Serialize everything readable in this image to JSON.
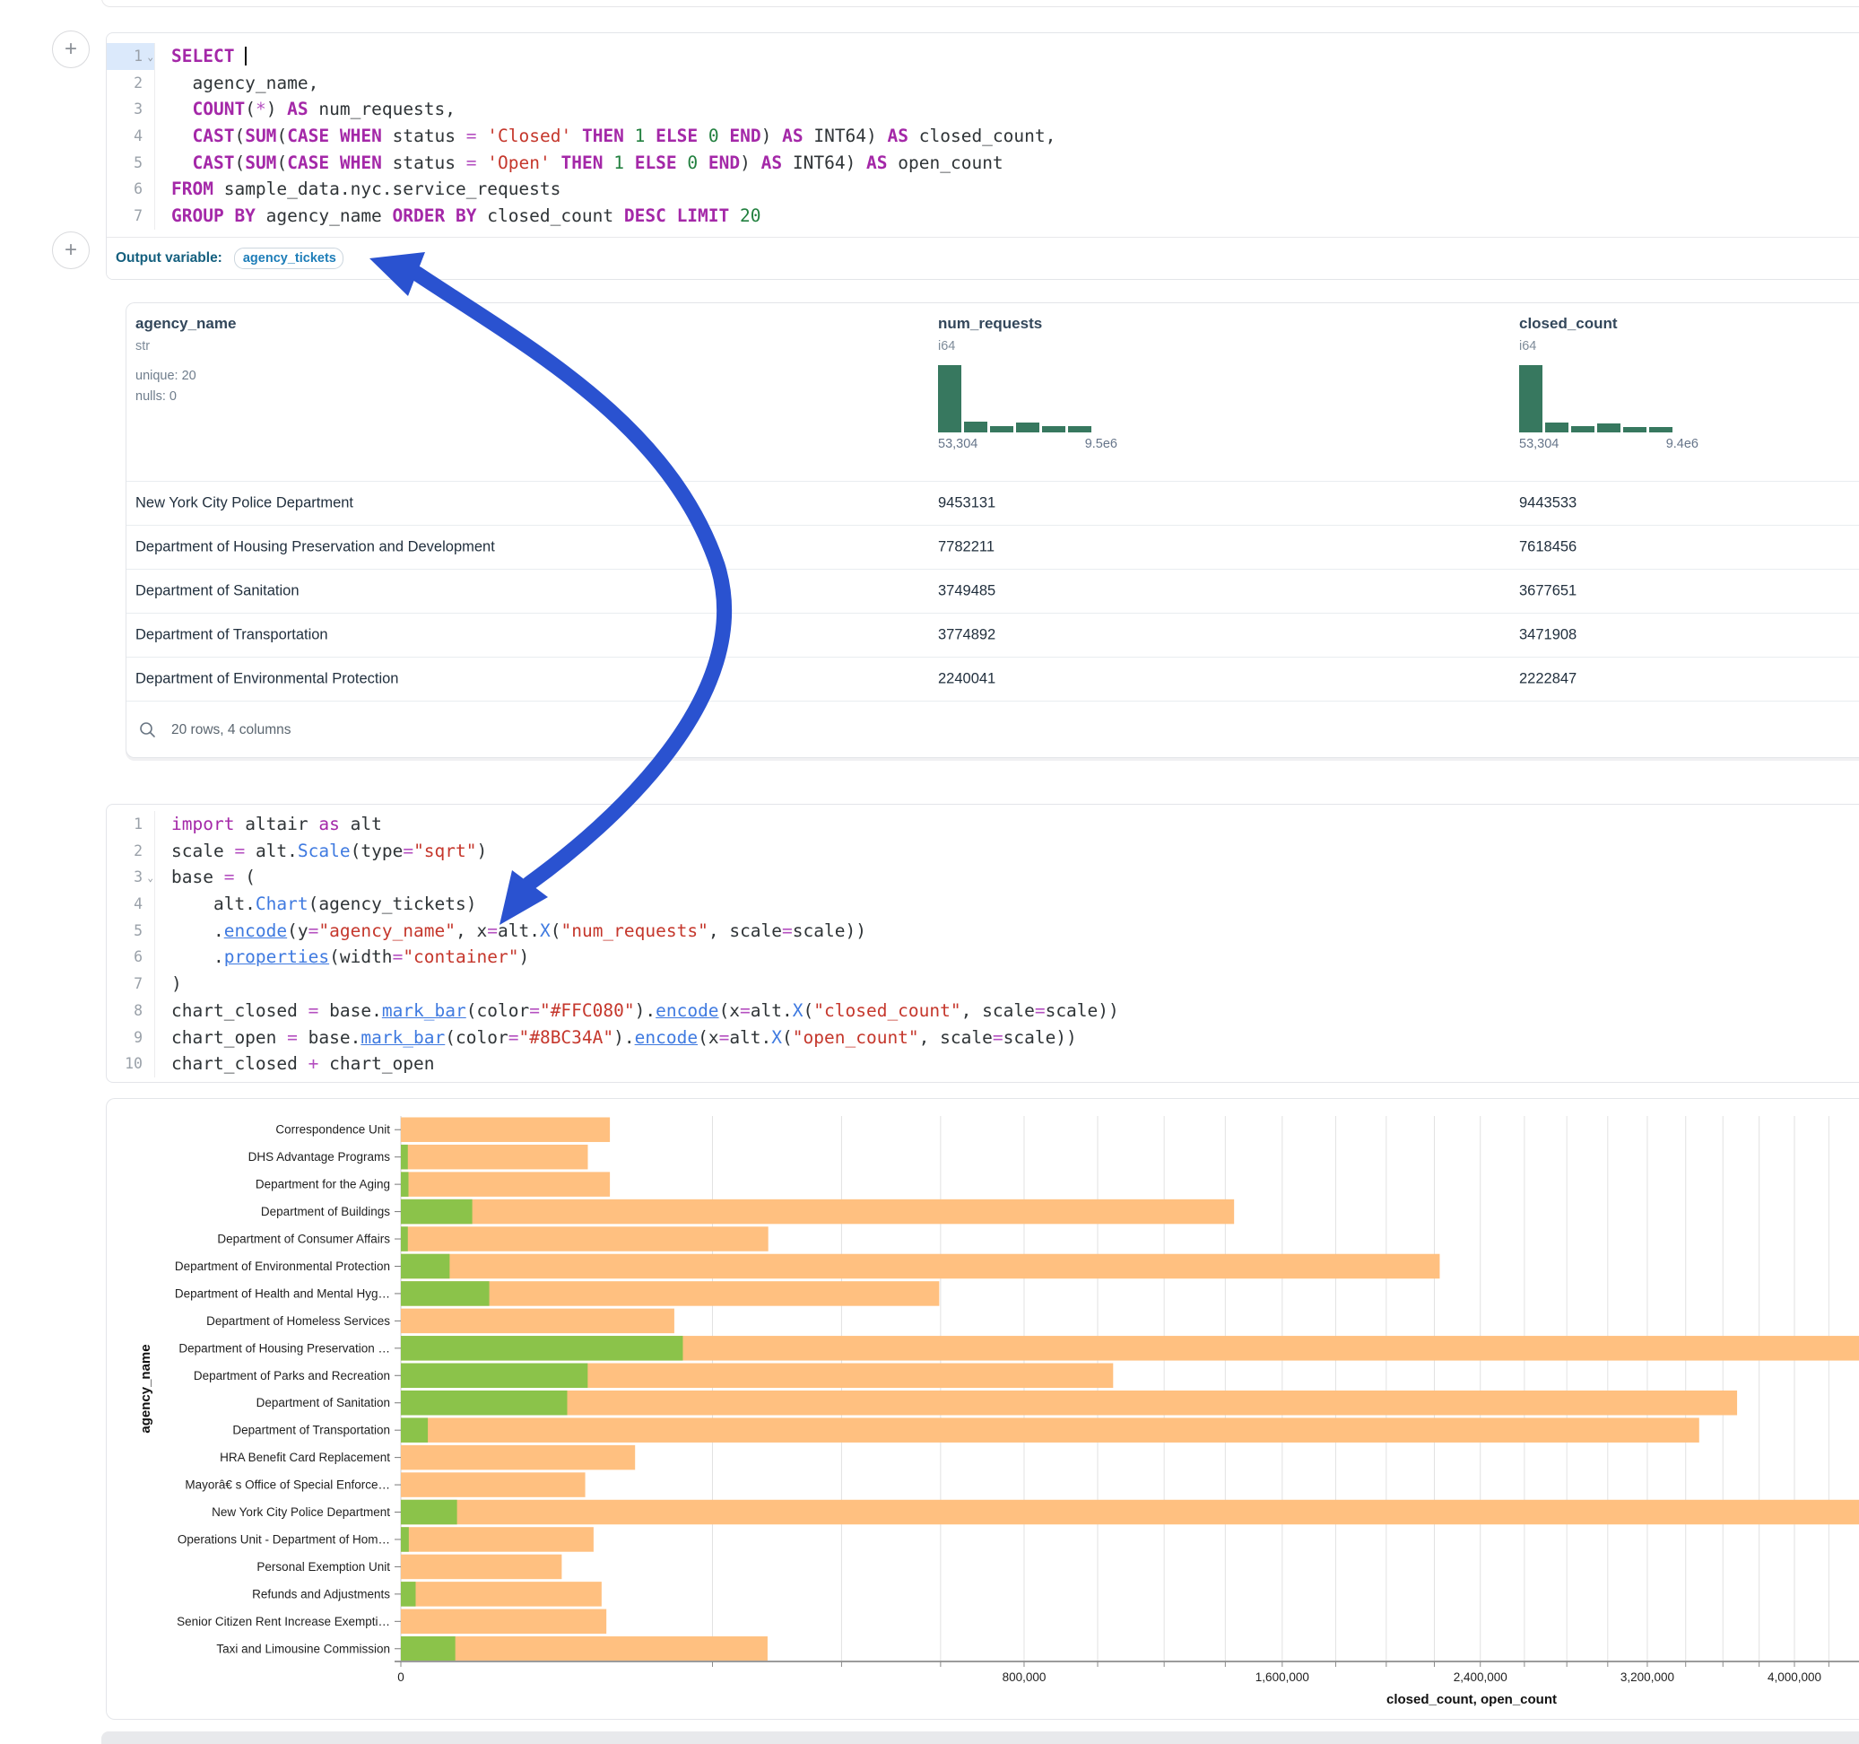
{
  "colors": {
    "arrow": "#2a52d0",
    "bar_closed": "#FFC080",
    "bar_open": "#8BC34A",
    "histogram": "#37785f",
    "keyword": "#a428a8",
    "string": "#c5372c",
    "number": "#22803f",
    "function": "#3f7ae0"
  },
  "add_buttons": {
    "first": "+",
    "second": "+"
  },
  "sql_cell": {
    "lines": [
      {
        "n": "1",
        "chevron": true,
        "active": true,
        "tokens": [
          [
            "k",
            "SELECT"
          ],
          [
            "d",
            " "
          ],
          [
            "cur",
            ""
          ]
        ]
      },
      {
        "n": "2",
        "tokens": [
          [
            "d",
            "  agency_name,"
          ]
        ]
      },
      {
        "n": "3",
        "tokens": [
          [
            "d",
            "  "
          ],
          [
            "k",
            "COUNT"
          ],
          [
            "d",
            "("
          ],
          [
            "o",
            "*"
          ],
          [
            "d",
            ") "
          ],
          [
            "k",
            "AS"
          ],
          [
            "d",
            " num_requests,"
          ]
        ]
      },
      {
        "n": "4",
        "tokens": [
          [
            "d",
            "  "
          ],
          [
            "k",
            "CAST"
          ],
          [
            "d",
            "("
          ],
          [
            "k",
            "SUM"
          ],
          [
            "d",
            "("
          ],
          [
            "k",
            "CASE WHEN"
          ],
          [
            "d",
            " status "
          ],
          [
            "o",
            "="
          ],
          [
            "d",
            " "
          ],
          [
            "s",
            "'Closed'"
          ],
          [
            "d",
            " "
          ],
          [
            "k",
            "THEN"
          ],
          [
            "d",
            " "
          ],
          [
            "n",
            "1"
          ],
          [
            "d",
            " "
          ],
          [
            "k",
            "ELSE"
          ],
          [
            "d",
            " "
          ],
          [
            "n",
            "0"
          ],
          [
            "d",
            " "
          ],
          [
            "k",
            "END"
          ],
          [
            "d",
            ") "
          ],
          [
            "k",
            "AS"
          ],
          [
            "d",
            " INT64) "
          ],
          [
            "k",
            "AS"
          ],
          [
            "d",
            " closed_count,"
          ]
        ]
      },
      {
        "n": "5",
        "tokens": [
          [
            "d",
            "  "
          ],
          [
            "k",
            "CAST"
          ],
          [
            "d",
            "("
          ],
          [
            "k",
            "SUM"
          ],
          [
            "d",
            "("
          ],
          [
            "k",
            "CASE WHEN"
          ],
          [
            "d",
            " status "
          ],
          [
            "o",
            "="
          ],
          [
            "d",
            " "
          ],
          [
            "s",
            "'Open'"
          ],
          [
            "d",
            " "
          ],
          [
            "k",
            "THEN"
          ],
          [
            "d",
            " "
          ],
          [
            "n",
            "1"
          ],
          [
            "d",
            " "
          ],
          [
            "k",
            "ELSE"
          ],
          [
            "d",
            " "
          ],
          [
            "n",
            "0"
          ],
          [
            "d",
            " "
          ],
          [
            "k",
            "END"
          ],
          [
            "d",
            ") "
          ],
          [
            "k",
            "AS"
          ],
          [
            "d",
            " INT64) "
          ],
          [
            "k",
            "AS"
          ],
          [
            "d",
            " open_count"
          ]
        ]
      },
      {
        "n": "6",
        "tokens": [
          [
            "k",
            "FROM"
          ],
          [
            "d",
            " sample_data.nyc.service_requests"
          ]
        ]
      },
      {
        "n": "7",
        "tokens": [
          [
            "k",
            "GROUP BY"
          ],
          [
            "d",
            " agency_name "
          ],
          [
            "k",
            "ORDER BY"
          ],
          [
            "d",
            " closed_count "
          ],
          [
            "k",
            "DESC"
          ],
          [
            "d",
            " "
          ],
          [
            "k",
            "LIMIT"
          ],
          [
            "d",
            " "
          ],
          [
            "n",
            "20"
          ]
        ]
      }
    ]
  },
  "output": {
    "label": "Output variable:",
    "variable": "agency_tickets"
  },
  "table": {
    "columns": [
      {
        "name": "agency_name",
        "type": "str",
        "meta": [
          "unique: 20",
          "nulls: 0"
        ]
      },
      {
        "name": "num_requests",
        "type": "i64",
        "hist": [
          100,
          16,
          9,
          15,
          9,
          9
        ],
        "min_label": "53,304",
        "max_label": "9.5e6"
      },
      {
        "name": "closed_count",
        "type": "i64",
        "hist": [
          100,
          15,
          9,
          14,
          8,
          8
        ],
        "min_label": "53,304",
        "max_label": "9.4e6"
      }
    ],
    "rows": [
      {
        "agency": "New York City Police Department",
        "num": "9453131",
        "closed": "9443533"
      },
      {
        "agency": "Department of Housing Preservation and Development",
        "num": "7782211",
        "closed": "7618456"
      },
      {
        "agency": "Department of Sanitation",
        "num": "3749485",
        "closed": "3677651"
      },
      {
        "agency": "Department of Transportation",
        "num": "3774892",
        "closed": "3471908"
      },
      {
        "agency": "Department of Environmental Protection",
        "num": "2240041",
        "closed": "2222847"
      }
    ],
    "footer": "20 rows, 4 columns"
  },
  "python_cell": {
    "lines": [
      {
        "n": "1",
        "tokens": [
          [
            "kw",
            "import"
          ],
          [
            "d",
            " altair "
          ],
          [
            "kw",
            "as"
          ],
          [
            "d",
            " alt"
          ]
        ]
      },
      {
        "n": "2",
        "tokens": [
          [
            "d",
            "scale "
          ],
          [
            "o",
            "="
          ],
          [
            "d",
            " alt."
          ],
          [
            "f",
            "Scale"
          ],
          [
            "d",
            "(type"
          ],
          [
            "o",
            "="
          ],
          [
            "s",
            "\"sqrt\""
          ],
          [
            "d",
            ")"
          ]
        ]
      },
      {
        "n": "3",
        "chevron": true,
        "tokens": [
          [
            "d",
            "base "
          ],
          [
            "o",
            "="
          ],
          [
            "d",
            " ("
          ]
        ]
      },
      {
        "n": "4",
        "tokens": [
          [
            "d",
            "    alt."
          ],
          [
            "f",
            "Chart"
          ],
          [
            "d",
            "(agency_tickets)"
          ]
        ]
      },
      {
        "n": "5",
        "tokens": [
          [
            "d",
            "    ."
          ],
          [
            "fu",
            "encode"
          ],
          [
            "d",
            "(y"
          ],
          [
            "o",
            "="
          ],
          [
            "s",
            "\"agency_name\""
          ],
          [
            "d",
            ", x"
          ],
          [
            "o",
            "="
          ],
          [
            "d",
            "alt."
          ],
          [
            "f",
            "X"
          ],
          [
            "d",
            "("
          ],
          [
            "s",
            "\"num_requests\""
          ],
          [
            "d",
            ", scale"
          ],
          [
            "o",
            "="
          ],
          [
            "d",
            "scale))"
          ]
        ]
      },
      {
        "n": "6",
        "tokens": [
          [
            "d",
            "    ."
          ],
          [
            "fu",
            "properties"
          ],
          [
            "d",
            "(width"
          ],
          [
            "o",
            "="
          ],
          [
            "s",
            "\"container\""
          ],
          [
            "d",
            ")"
          ]
        ]
      },
      {
        "n": "7",
        "tokens": [
          [
            "d",
            ")"
          ]
        ]
      },
      {
        "n": "8",
        "tokens": [
          [
            "d",
            "chart_closed "
          ],
          [
            "o",
            "="
          ],
          [
            "d",
            " base."
          ],
          [
            "fu",
            "mark_bar"
          ],
          [
            "d",
            "(color"
          ],
          [
            "o",
            "="
          ],
          [
            "s",
            "\"#FFC080\""
          ],
          [
            "d",
            ")."
          ],
          [
            "fu",
            "encode"
          ],
          [
            "d",
            "(x"
          ],
          [
            "o",
            "="
          ],
          [
            "d",
            "alt."
          ],
          [
            "f",
            "X"
          ],
          [
            "d",
            "("
          ],
          [
            "s",
            "\"closed_count\""
          ],
          [
            "d",
            ", scale"
          ],
          [
            "o",
            "="
          ],
          [
            "d",
            "scale))"
          ]
        ]
      },
      {
        "n": "9",
        "tokens": [
          [
            "d",
            "chart_open "
          ],
          [
            "o",
            "="
          ],
          [
            "d",
            " base."
          ],
          [
            "fu",
            "mark_bar"
          ],
          [
            "d",
            "(color"
          ],
          [
            "o",
            "="
          ],
          [
            "s",
            "\"#8BC34A\""
          ],
          [
            "d",
            ")."
          ],
          [
            "fu",
            "encode"
          ],
          [
            "d",
            "(x"
          ],
          [
            "o",
            "="
          ],
          [
            "d",
            "alt."
          ],
          [
            "f",
            "X"
          ],
          [
            "d",
            "("
          ],
          [
            "s",
            "\"open_count\""
          ],
          [
            "d",
            ", scale"
          ],
          [
            "o",
            "="
          ],
          [
            "d",
            "scale))"
          ]
        ]
      },
      {
        "n": "10",
        "tokens": [
          [
            "d",
            "chart_closed "
          ],
          [
            "o",
            "+"
          ],
          [
            "d",
            " chart_open"
          ]
        ]
      }
    ]
  },
  "chart_data": {
    "type": "bar",
    "orientation": "horizontal",
    "x_scale": "sqrt",
    "title": "",
    "xlabel": "closed_count, open_count",
    "ylabel": "agency_name",
    "grid": true,
    "x_visible_max": 4400000,
    "categories": [
      "Correspondence Unit",
      "DHS Advantage Programs",
      "Department for the Aging",
      "Department of Buildings",
      "Department of Consumer Affairs",
      "Department of Environmental Protection",
      "Department of Health and Mental Hyg…",
      "Department of Homeless Services",
      "Department of Housing Preservation …",
      "Department of Parks and Recreation",
      "Department of Sanitation",
      "Department of Transportation",
      "HRA Benefit Card Replacement",
      "Mayorâ€ s Office of Special Enforce…",
      "New York City Police Department",
      "Operations Unit - Department of Hom…",
      "Personal Exemption Unit",
      "Refunds and Adjustments",
      "Senior Citizen Rent Increase Exempti…",
      "Taxi and Limousine Commission"
    ],
    "series": [
      {
        "name": "closed_count",
        "color": "#FFC080",
        "values": [
          90000,
          72000,
          90000,
          1430000,
          278000,
          2222847,
          597000,
          154000,
          7618456,
          1045000,
          3677651,
          3471908,
          113000,
          70000,
          9443533,
          76500,
          53304,
          83000,
          87000,
          277000
        ]
      },
      {
        "name": "open_count",
        "color": "#8BC34A",
        "values": [
          0,
          100,
          120,
          10500,
          100,
          4900,
          16100,
          0,
          163800,
          71900,
          57000,
          1500,
          0,
          0,
          6500,
          130,
          0,
          450,
          0,
          6100
        ]
      }
    ],
    "x_ticks": [
      {
        "value": 0,
        "label": "0"
      },
      {
        "value": 800000,
        "label": "800,000"
      },
      {
        "value": 1600000,
        "label": "1,600,000"
      },
      {
        "value": 2400000,
        "label": "2,400,000"
      },
      {
        "value": 3200000,
        "label": "3,200,000"
      },
      {
        "value": 4000000,
        "label": "4,000,000"
      }
    ]
  }
}
